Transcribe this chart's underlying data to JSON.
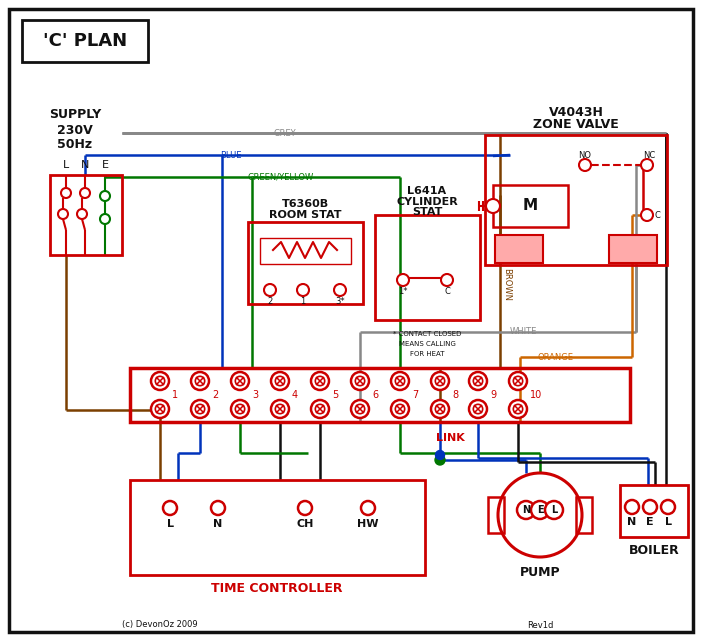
{
  "title": "'C' PLAN",
  "RED": "#cc0000",
  "BLUE": "#0033bb",
  "GREEN": "#007700",
  "BROWN": "#7B3F00",
  "GREY": "#888888",
  "ORANGE": "#cc6600",
  "BLACK": "#111111",
  "PINK": "#ffaaaa",
  "zone_title1": "V4043H",
  "zone_title2": "ZONE VALVE",
  "room_stat1": "T6360B",
  "room_stat2": "ROOM STAT",
  "cyl_stat1": "L641A",
  "cyl_stat2": "CYLINDER",
  "cyl_stat3": "STAT",
  "tc_label": "TIME CONTROLLER",
  "pump_label": "PUMP",
  "boiler_label": "BOILER",
  "supply1": "SUPPLY",
  "supply2": "230V",
  "supply3": "50Hz",
  "link_label": "LINK",
  "contact_note1": "* CONTACT CLOSED",
  "contact_note2": "MEANS CALLING",
  "contact_note3": "FOR HEAT",
  "copyright": "(c) DevonOz 2009",
  "rev": "Rev1d",
  "terminal_nums": [
    "1",
    "2",
    "3",
    "4",
    "5",
    "6",
    "7",
    "8",
    "9",
    "10"
  ]
}
